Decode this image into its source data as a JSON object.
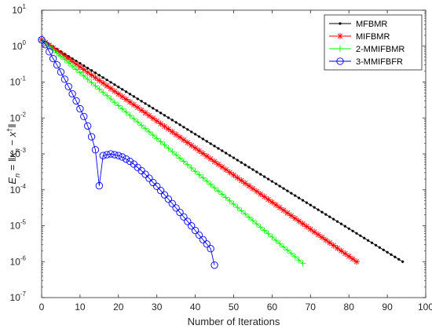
{
  "chart_data": {
    "type": "line",
    "xlabel": "Number of Iterations",
    "ylabel": "E_n = ||x_n - x^†||",
    "ylabel_parts": {
      "E": "E",
      "n": "n",
      "eq": " = ",
      "x": "x",
      "dag": "†"
    },
    "xlim": [
      0,
      100
    ],
    "ylim": [
      1e-07,
      10
    ],
    "yscale": "log",
    "grid": false,
    "legend_position": "top-right",
    "x_ticks": [
      "0",
      "10",
      "20",
      "30",
      "40",
      "50",
      "60",
      "70",
      "80",
      "90",
      "100"
    ],
    "y_ticks": [
      {
        "base": "10",
        "exp": "-7"
      },
      {
        "base": "10",
        "exp": "-6"
      },
      {
        "base": "10",
        "exp": "-5"
      },
      {
        "base": "10",
        "exp": "-4"
      },
      {
        "base": "10",
        "exp": "-3"
      },
      {
        "base": "10",
        "exp": "-2"
      },
      {
        "base": "10",
        "exp": "-1"
      },
      {
        "base": "10",
        "exp": "0"
      },
      {
        "base": "10",
        "exp": "1"
      }
    ],
    "series": [
      {
        "name": "MFBMR",
        "color": "#000000",
        "marker": "dot",
        "model": {
          "type": "geometric",
          "start": 1.5,
          "end": 1e-06,
          "n_last": 94
        }
      },
      {
        "name": "MIFBMR",
        "color": "#ff0000",
        "marker": "asterisk",
        "model": {
          "type": "geometric",
          "start": 1.5,
          "end": 1e-06,
          "n_last": 82
        }
      },
      {
        "name": "2-MMIFBMR",
        "color": "#00ff00",
        "marker": "plus",
        "model": {
          "type": "geometric",
          "start": 1.5,
          "end": 9e-07,
          "n_last": 68
        }
      },
      {
        "name": "3-MMIFBFR",
        "color": "#0000ff",
        "marker": "circle",
        "values": [
          1.5,
          1.1,
          0.7,
          0.45,
          0.3,
          0.19,
          0.12,
          0.075,
          0.047,
          0.03,
          0.018,
          0.011,
          0.006,
          0.003,
          0.0013,
          0.00013,
          0.0009,
          0.00095,
          0.001,
          0.00095,
          0.0009,
          0.00082,
          0.00072,
          0.00062,
          0.00052,
          0.00042,
          0.00034,
          0.00027,
          0.00021,
          0.00016,
          0.000125,
          9.55e-05,
          7.25e-05,
          5.5e-05,
          4.15e-05,
          3.12e-05,
          2.35e-05,
          1.76e-05,
          1.32e-05,
          9.9e-06,
          7.4e-06,
          5.5e-06,
          4.1e-06,
          3.1e-06,
          2.3e-06,
          8e-07
        ]
      }
    ]
  }
}
